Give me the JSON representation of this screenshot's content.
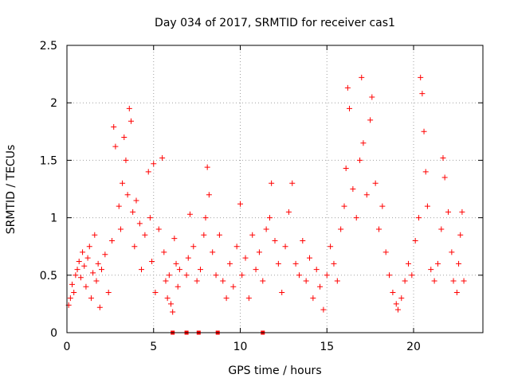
{
  "chart_data": {
    "type": "scatter",
    "title": "Day 034 of 2017, SRMTID for receiver cas1",
    "xlabel": "GPS time / hours",
    "ylabel": "SRMTID / TECUs",
    "xlim": [
      0,
      24
    ],
    "ylim": [
      0,
      2.5
    ],
    "xticks": [
      0,
      5,
      10,
      15,
      20
    ],
    "yticks": [
      0,
      0.5,
      1,
      1.5,
      2,
      2.5
    ],
    "xtick_labels": [
      "0",
      "5",
      "10",
      "15",
      "20"
    ],
    "ytick_labels": [
      "0",
      "0.5",
      "1",
      "1.5",
      "2",
      "2.5"
    ],
    "grid": true,
    "marker": "plus",
    "color": "#ff0000",
    "series": [
      {
        "name": "cas1",
        "points": [
          [
            0.1,
            0.24
          ],
          [
            0.2,
            0.3
          ],
          [
            0.3,
            0.42
          ],
          [
            0.4,
            0.35
          ],
          [
            0.5,
            0.5
          ],
          [
            0.6,
            0.55
          ],
          [
            0.7,
            0.62
          ],
          [
            0.8,
            0.48
          ],
          [
            0.9,
            0.7
          ],
          [
            1.0,
            0.58
          ],
          [
            1.1,
            0.4
          ],
          [
            1.2,
            0.65
          ],
          [
            1.3,
            0.75
          ],
          [
            1.4,
            0.3
          ],
          [
            1.5,
            0.52
          ],
          [
            1.6,
            0.85
          ],
          [
            1.7,
            0.45
          ],
          [
            1.8,
            0.6
          ],
          [
            1.9,
            0.22
          ],
          [
            2.0,
            0.55
          ],
          [
            2.2,
            0.68
          ],
          [
            2.4,
            0.35
          ],
          [
            2.6,
            0.8
          ],
          [
            2.7,
            1.79
          ],
          [
            2.8,
            1.62
          ],
          [
            3.0,
            1.1
          ],
          [
            3.1,
            0.9
          ],
          [
            3.2,
            1.3
          ],
          [
            3.3,
            1.7
          ],
          [
            3.4,
            1.5
          ],
          [
            3.5,
            1.2
          ],
          [
            3.6,
            1.95
          ],
          [
            3.7,
            1.84
          ],
          [
            3.8,
            1.05
          ],
          [
            3.9,
            0.75
          ],
          [
            4.0,
            1.15
          ],
          [
            4.2,
            0.95
          ],
          [
            4.3,
            0.55
          ],
          [
            4.5,
            0.85
          ],
          [
            4.7,
            1.4
          ],
          [
            4.8,
            1.0
          ],
          [
            4.9,
            0.62
          ],
          [
            5.0,
            1.47
          ],
          [
            5.1,
            0.35
          ],
          [
            5.3,
            0.9
          ],
          [
            5.5,
            1.52
          ],
          [
            5.6,
            0.7
          ],
          [
            5.7,
            0.45
          ],
          [
            5.8,
            0.3
          ],
          [
            5.9,
            0.5
          ],
          [
            6.0,
            0.25
          ],
          [
            6.1,
            0.18
          ],
          [
            6.2,
            0.82
          ],
          [
            6.3,
            0.6
          ],
          [
            6.4,
            0.4
          ],
          [
            6.5,
            0.55
          ],
          [
            6.9,
            0.5
          ],
          [
            7.0,
            0.65
          ],
          [
            7.1,
            1.03
          ],
          [
            7.3,
            0.75
          ],
          [
            7.5,
            0.45
          ],
          [
            7.7,
            0.55
          ],
          [
            7.9,
            0.85
          ],
          [
            8.0,
            1.0
          ],
          [
            8.1,
            1.44
          ],
          [
            8.2,
            1.2
          ],
          [
            8.4,
            0.7
          ],
          [
            8.6,
            0.5
          ],
          [
            8.8,
            0.85
          ],
          [
            9.0,
            0.45
          ],
          [
            9.2,
            0.3
          ],
          [
            9.4,
            0.6
          ],
          [
            9.6,
            0.4
          ],
          [
            9.8,
            0.75
          ],
          [
            10.0,
            1.12
          ],
          [
            10.1,
            0.5
          ],
          [
            10.3,
            0.65
          ],
          [
            10.5,
            0.3
          ],
          [
            10.7,
            0.85
          ],
          [
            10.9,
            0.55
          ],
          [
            11.1,
            0.7
          ],
          [
            11.3,
            0.45
          ],
          [
            11.5,
            0.9
          ],
          [
            11.7,
            1.0
          ],
          [
            11.8,
            1.3
          ],
          [
            12.0,
            0.8
          ],
          [
            12.2,
            0.6
          ],
          [
            12.4,
            0.35
          ],
          [
            12.6,
            0.75
          ],
          [
            12.8,
            1.05
          ],
          [
            13.0,
            1.3
          ],
          [
            13.2,
            0.6
          ],
          [
            13.4,
            0.5
          ],
          [
            13.6,
            0.8
          ],
          [
            13.8,
            0.45
          ],
          [
            14.0,
            0.65
          ],
          [
            14.2,
            0.3
          ],
          [
            14.4,
            0.55
          ],
          [
            14.6,
            0.4
          ],
          [
            14.8,
            0.2
          ],
          [
            15.0,
            0.5
          ],
          [
            15.2,
            0.75
          ],
          [
            15.4,
            0.6
          ],
          [
            15.6,
            0.45
          ],
          [
            15.8,
            0.9
          ],
          [
            16.0,
            1.1
          ],
          [
            16.1,
            1.43
          ],
          [
            16.2,
            2.13
          ],
          [
            16.3,
            1.95
          ],
          [
            16.5,
            1.25
          ],
          [
            16.7,
            1.0
          ],
          [
            16.9,
            1.5
          ],
          [
            17.0,
            2.22
          ],
          [
            17.1,
            1.65
          ],
          [
            17.3,
            1.2
          ],
          [
            17.5,
            1.85
          ],
          [
            17.6,
            2.05
          ],
          [
            17.8,
            1.3
          ],
          [
            18.0,
            0.9
          ],
          [
            18.2,
            1.1
          ],
          [
            18.4,
            0.7
          ],
          [
            18.6,
            0.5
          ],
          [
            18.8,
            0.35
          ],
          [
            19.0,
            0.25
          ],
          [
            19.1,
            0.2
          ],
          [
            19.3,
            0.3
          ],
          [
            19.5,
            0.45
          ],
          [
            19.7,
            0.6
          ],
          [
            19.9,
            0.5
          ],
          [
            20.1,
            0.8
          ],
          [
            20.3,
            1.0
          ],
          [
            20.4,
            2.22
          ],
          [
            20.5,
            2.08
          ],
          [
            20.6,
            1.75
          ],
          [
            20.7,
            1.4
          ],
          [
            20.8,
            1.1
          ],
          [
            21.0,
            0.55
          ],
          [
            21.2,
            0.45
          ],
          [
            21.4,
            0.6
          ],
          [
            21.6,
            0.9
          ],
          [
            21.7,
            1.52
          ],
          [
            21.8,
            1.35
          ],
          [
            22.0,
            1.05
          ],
          [
            22.2,
            0.7
          ],
          [
            22.3,
            0.45
          ],
          [
            22.5,
            0.35
          ],
          [
            22.6,
            0.6
          ],
          [
            22.7,
            0.85
          ],
          [
            22.8,
            1.05
          ],
          [
            22.9,
            0.45
          ]
        ]
      }
    ],
    "zero_markers": [
      6.1,
      6.9,
      7.6,
      8.7,
      11.3
    ]
  }
}
